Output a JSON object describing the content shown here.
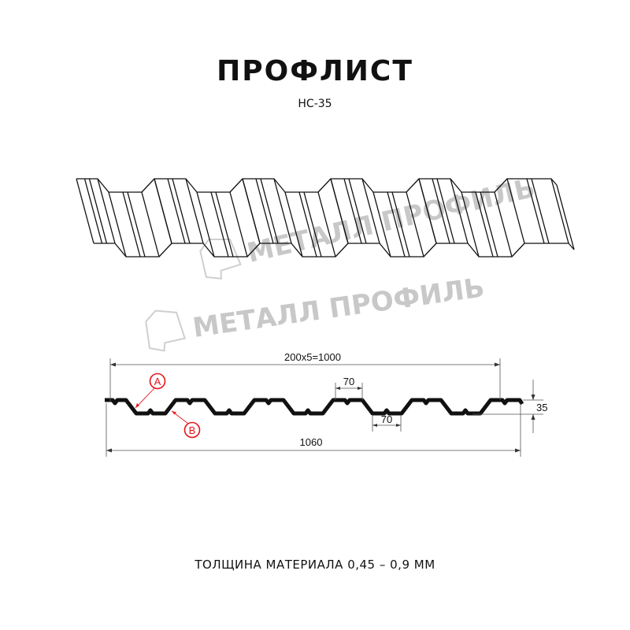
{
  "title": "ПРОФЛИСТ",
  "subtitle": "НС-35",
  "watermark": "МЕТАЛЛ ПРОФИЛЬ",
  "dimensions": {
    "pitch_total": "200x5=1000",
    "top_flat": "70",
    "bottom_flat": "70",
    "overall_width": "1060",
    "height": "35"
  },
  "markers": {
    "a": "A",
    "b": "B"
  },
  "colors": {
    "line": "#111111",
    "marker": "#e3141b",
    "watermark": "#c8c8c8"
  },
  "footer": "ТОЛЩИНА МАТЕРИАЛА 0,45 – 0,9 ММ"
}
